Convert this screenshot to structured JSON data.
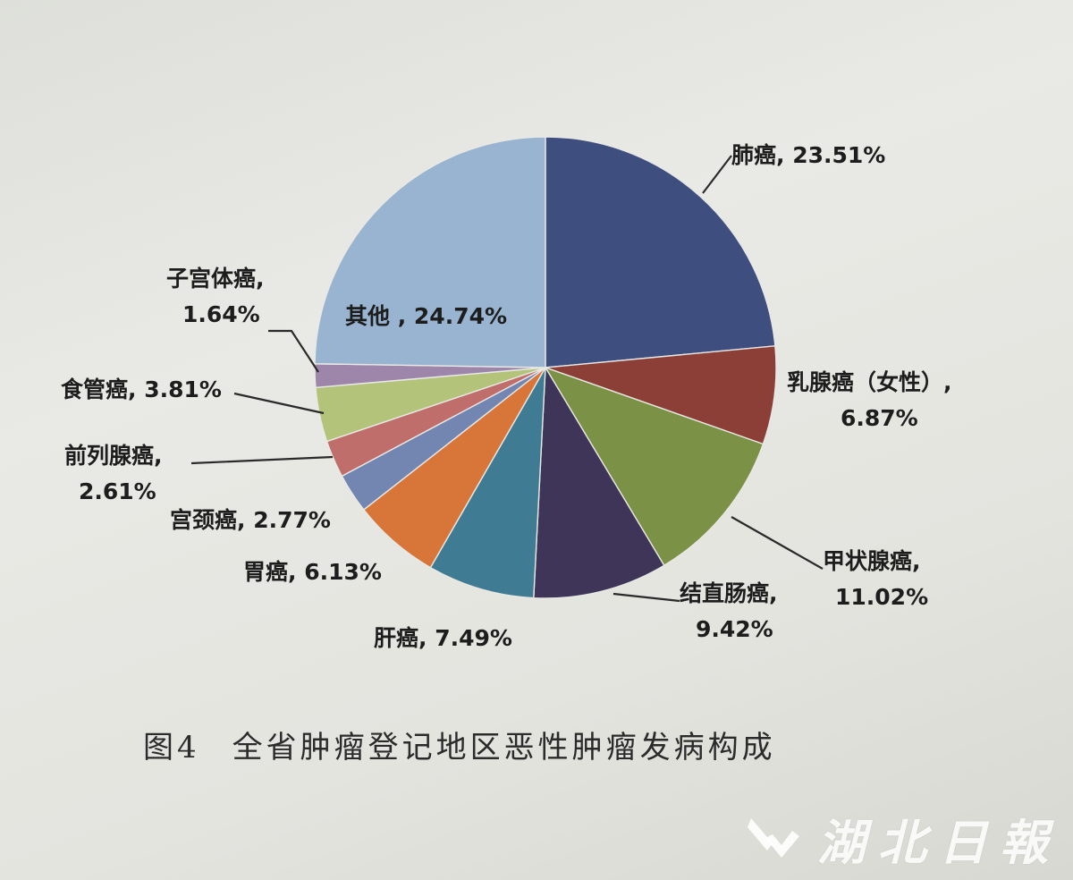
{
  "chart_data": {
    "type": "pie",
    "title": "",
    "slices": [
      {
        "name": "肺癌",
        "value": 23.51,
        "label_lines": [
          "肺癌, 23.51%"
        ],
        "color": "#3e4e7e"
      },
      {
        "name": "乳腺癌（女性）",
        "value": 6.87,
        "label_lines": [
          "乳腺癌（女性）,",
          "6.87%"
        ],
        "color": "#8c3f37"
      },
      {
        "name": "甲状腺癌",
        "value": 11.02,
        "label_lines": [
          "甲状腺癌,",
          "11.02%"
        ],
        "color": "#7b9146"
      },
      {
        "name": "结直肠癌",
        "value": 9.42,
        "label_lines": [
          "结直肠癌,",
          "9.42%"
        ],
        "color": "#3e3558"
      },
      {
        "name": "肝癌",
        "value": 7.49,
        "label_lines": [
          "肝癌, 7.49%"
        ],
        "color": "#3f7c93"
      },
      {
        "name": "胃癌",
        "value": 6.13,
        "label_lines": [
          "胃癌, 6.13%"
        ],
        "color": "#d8763a"
      },
      {
        "name": "宫颈癌",
        "value": 2.77,
        "label_lines": [
          "宫颈癌, 2.77%"
        ],
        "color": "#7385b1"
      },
      {
        "name": "前列腺癌",
        "value": 2.61,
        "label_lines": [
          "前列腺癌,",
          "2.61%"
        ],
        "color": "#c06e6c"
      },
      {
        "name": "食管癌",
        "value": 3.81,
        "label_lines": [
          "食管癌, 3.81%"
        ],
        "color": "#b3c47a"
      },
      {
        "name": "子宫体癌",
        "value": 1.64,
        "label_lines": [
          "子宫体癌,",
          "1.64%"
        ],
        "color": "#9e86ab"
      },
      {
        "name": "其他",
        "value": 24.74,
        "label_lines": [
          "其他 , 24.74%"
        ],
        "color": "#99b4d0"
      }
    ]
  },
  "caption": {
    "figure_number": "图4",
    "text": "全省肿瘤登记地区恶性肿瘤发病构成"
  },
  "watermark": {
    "text": "湖北日報",
    "logo_icon": "hubei-daily-logo-icon"
  }
}
